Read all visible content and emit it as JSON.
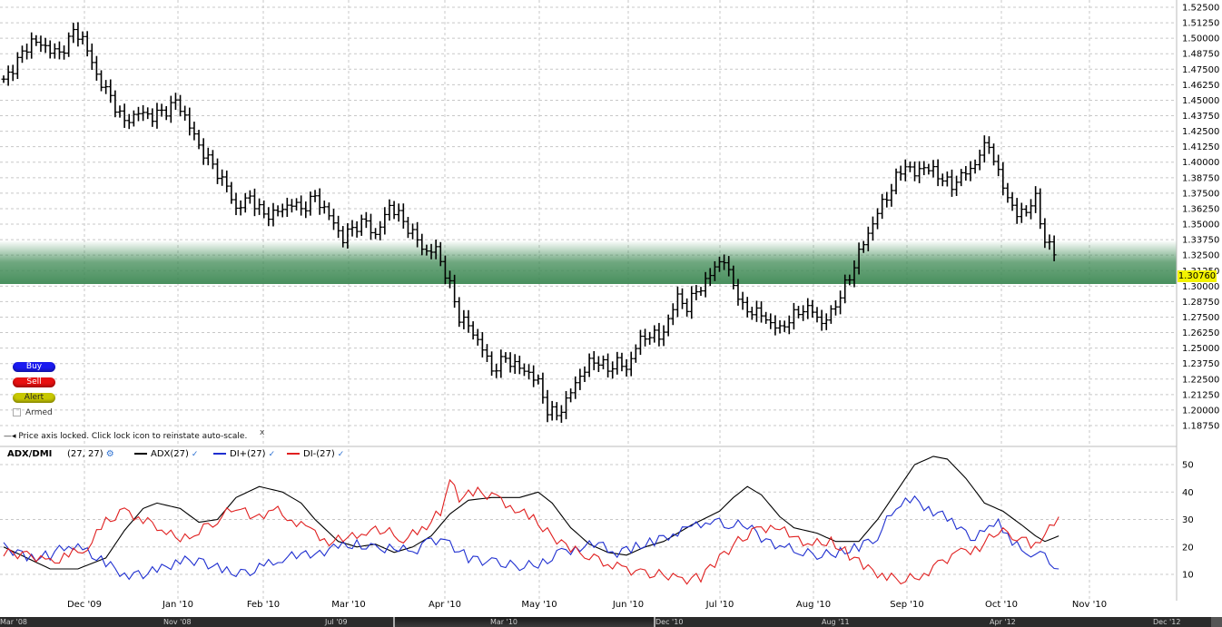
{
  "buttons": {
    "buy": "Buy",
    "sell": "Sell",
    "alert": "Alert",
    "armed": "Armed"
  },
  "lock_message": "Price axis locked. Click lock icon to reinstate auto-scale.",
  "lock_close": "x",
  "indicator": {
    "name": "ADX/DMI",
    "params": "(27, 27)",
    "lines": [
      {
        "label": "ADX(27)",
        "color": "#000000"
      },
      {
        "label": "DI+(27)",
        "color": "#1f2fd0"
      },
      {
        "label": "DI-(27)",
        "color": "#e02020"
      }
    ]
  },
  "price_tag": "1.30760",
  "navigator_labels": [
    "Mar '08",
    "Nov '08",
    "Jul '09",
    "Mar '10",
    "Dec '10",
    "Aug '11",
    "Apr '12",
    "Dec '12"
  ],
  "colors": {
    "band": "#3f8a55",
    "price_tag": "#f3f300",
    "adx": "#000000",
    "di_plus": "#1f2fd0",
    "di_minus": "#e02020"
  },
  "chart_data": [
    {
      "type": "ohlc",
      "y_ticks": [
        "1.52500",
        "1.51250",
        "1.50000",
        "1.48750",
        "1.47500",
        "1.46250",
        "1.45000",
        "1.43750",
        "1.42500",
        "1.41250",
        "1.40000",
        "1.38750",
        "1.37500",
        "1.36250",
        "1.35000",
        "1.33750",
        "1.32500",
        "1.31250",
        "1.30000",
        "1.28750",
        "1.27500",
        "1.26250",
        "1.25000",
        "1.23750",
        "1.22500",
        "1.21250",
        "1.20000",
        "1.18750"
      ],
      "ylim": [
        1.18,
        1.53
      ],
      "x_labels": [
        "Dec '09",
        "Jan '10",
        "Feb '10",
        "Mar '10",
        "Apr '10",
        "May '10",
        "Jun '10",
        "Jul '10",
        "Aug '10",
        "Sep '10",
        "Oct '10",
        "Nov '10"
      ],
      "highlight_band": [
        1.3005,
        1.3255
      ],
      "last_price": 1.3076,
      "anchors": [
        [
          0,
          1.465
        ],
        [
          3,
          1.482
        ],
        [
          6,
          1.498
        ],
        [
          9,
          1.493
        ],
        [
          12,
          1.487
        ],
        [
          15,
          1.505
        ],
        [
          17,
          1.5
        ],
        [
          20,
          1.47
        ],
        [
          23,
          1.452
        ],
        [
          26,
          1.432
        ],
        [
          29,
          1.44
        ],
        [
          32,
          1.437
        ],
        [
          35,
          1.442
        ],
        [
          37,
          1.449
        ],
        [
          39,
          1.437
        ],
        [
          42,
          1.413
        ],
        [
          45,
          1.397
        ],
        [
          48,
          1.38
        ],
        [
          50,
          1.362
        ],
        [
          53,
          1.372
        ],
        [
          56,
          1.357
        ],
        [
          59,
          1.36
        ],
        [
          62,
          1.367
        ],
        [
          64,
          1.362
        ],
        [
          67,
          1.372
        ],
        [
          70,
          1.357
        ],
        [
          73,
          1.338
        ],
        [
          75,
          1.347
        ],
        [
          78,
          1.352
        ],
        [
          80,
          1.34
        ],
        [
          83,
          1.365
        ],
        [
          85,
          1.357
        ],
        [
          88,
          1.342
        ],
        [
          91,
          1.327
        ],
        [
          93,
          1.33
        ],
        [
          96,
          1.3
        ],
        [
          98,
          1.275
        ],
        [
          100,
          1.268
        ],
        [
          103,
          1.25
        ],
        [
          105,
          1.232
        ],
        [
          108,
          1.242
        ],
        [
          110,
          1.236
        ],
        [
          113,
          1.23
        ],
        [
          115,
          1.222
        ],
        [
          117,
          1.2
        ],
        [
          119,
          1.196
        ],
        [
          121,
          1.207
        ],
        [
          123,
          1.222
        ],
        [
          126,
          1.238
        ],
        [
          128,
          1.24
        ],
        [
          130,
          1.232
        ],
        [
          132,
          1.24
        ],
        [
          134,
          1.232
        ],
        [
          136,
          1.252
        ],
        [
          139,
          1.262
        ],
        [
          141,
          1.258
        ],
        [
          143,
          1.272
        ],
        [
          145,
          1.292
        ],
        [
          147,
          1.282
        ],
        [
          149,
          1.297
        ],
        [
          151,
          1.302
        ],
        [
          153,
          1.317
        ],
        [
          155,
          1.32
        ],
        [
          157,
          1.302
        ],
        [
          159,
          1.282
        ],
        [
          161,
          1.28
        ],
        [
          163,
          1.277
        ],
        [
          165,
          1.27
        ],
        [
          167,
          1.265
        ],
        [
          169,
          1.273
        ],
        [
          172,
          1.282
        ],
        [
          174,
          1.28
        ],
        [
          176,
          1.27
        ],
        [
          178,
          1.278
        ],
        [
          180,
          1.293
        ],
        [
          182,
          1.307
        ],
        [
          184,
          1.327
        ],
        [
          186,
          1.342
        ],
        [
          188,
          1.36
        ],
        [
          190,
          1.372
        ],
        [
          192,
          1.387
        ],
        [
          194,
          1.398
        ],
        [
          196,
          1.39
        ],
        [
          198,
          1.397
        ],
        [
          200,
          1.392
        ],
        [
          202,
          1.387
        ],
        [
          204,
          1.38
        ],
        [
          206,
          1.39
        ],
        [
          208,
          1.393
        ],
        [
          210,
          1.407
        ],
        [
          212,
          1.415
        ],
        [
          214,
          1.39
        ],
        [
          216,
          1.372
        ],
        [
          218,
          1.357
        ],
        [
          220,
          1.362
        ],
        [
          222,
          1.37
        ],
        [
          224,
          1.337
        ],
        [
          226,
          1.327
        ]
      ]
    },
    {
      "type": "line",
      "y_ticks": [
        10,
        20,
        30,
        40,
        50
      ],
      "ylim": [
        4,
        57
      ],
      "series": [
        {
          "name": "ADX(27)",
          "color": "#000000",
          "points": [
            [
              0,
              20
            ],
            [
              5,
              16
            ],
            [
              10,
              12
            ],
            [
              16,
              12
            ],
            [
              22,
              16
            ],
            [
              26,
              26
            ],
            [
              30,
              34
            ],
            [
              33,
              36
            ],
            [
              38,
              34
            ],
            [
              42,
              29
            ],
            [
              46,
              30
            ],
            [
              50,
              38
            ],
            [
              55,
              42
            ],
            [
              60,
              40
            ],
            [
              64,
              36
            ],
            [
              67,
              30
            ],
            [
              72,
              22
            ],
            [
              76,
              20
            ],
            [
              80,
              21
            ],
            [
              84,
              18
            ],
            [
              88,
              20
            ],
            [
              92,
              24
            ],
            [
              96,
              32
            ],
            [
              100,
              37
            ],
            [
              105,
              38
            ],
            [
              111,
              38
            ],
            [
              115,
              40
            ],
            [
              118,
              36
            ],
            [
              122,
              27
            ],
            [
              126,
              21
            ],
            [
              130,
              18
            ],
            [
              134,
              17
            ],
            [
              138,
              20
            ],
            [
              142,
              22
            ],
            [
              148,
              28
            ],
            [
              154,
              33
            ],
            [
              157,
              38
            ],
            [
              160,
              42
            ],
            [
              163,
              39
            ],
            [
              167,
              31
            ],
            [
              170,
              27
            ],
            [
              175,
              25
            ],
            [
              179,
              22
            ],
            [
              184,
              22
            ],
            [
              188,
              30
            ],
            [
              192,
              40
            ],
            [
              196,
              50
            ],
            [
              200,
              53
            ],
            [
              203,
              52
            ],
            [
              207,
              45
            ],
            [
              211,
              36
            ],
            [
              215,
              33
            ],
            [
              219,
              28
            ],
            [
              222,
              24
            ],
            [
              224,
              22
            ],
            [
              227,
              24
            ]
          ]
        },
        {
          "name": "DI+(27)",
          "color": "#1f2fd0",
          "points": [
            [
              0,
              20
            ],
            [
              6,
              16
            ],
            [
              10,
              17
            ],
            [
              14,
              21
            ],
            [
              18,
              18
            ],
            [
              22,
              14
            ],
            [
              26,
              10
            ],
            [
              30,
              10
            ],
            [
              34,
              12
            ],
            [
              38,
              15
            ],
            [
              42,
              15
            ],
            [
              48,
              11
            ],
            [
              52,
              10
            ],
            [
              56,
              13
            ],
            [
              60,
              16
            ],
            [
              64,
              17
            ],
            [
              68,
              18
            ],
            [
              72,
              20
            ],
            [
              76,
              21
            ],
            [
              80,
              19
            ],
            [
              84,
              20
            ],
            [
              88,
              18
            ],
            [
              92,
              23
            ],
            [
              96,
              21
            ],
            [
              100,
              16
            ],
            [
              106,
              14
            ],
            [
              112,
              13
            ],
            [
              116,
              14
            ],
            [
              120,
              18
            ],
            [
              124,
              20
            ],
            [
              128,
              21
            ],
            [
              132,
              18
            ],
            [
              136,
              20
            ],
            [
              140,
              22
            ],
            [
              144,
              25
            ],
            [
              148,
              27
            ],
            [
              152,
              30
            ],
            [
              156,
              28
            ],
            [
              160,
              28
            ],
            [
              164,
              22
            ],
            [
              168,
              20
            ],
            [
              172,
              18
            ],
            [
              176,
              17
            ],
            [
              180,
              18
            ],
            [
              184,
              20
            ],
            [
              188,
              24
            ],
            [
              192,
              35
            ],
            [
              196,
              37
            ],
            [
              200,
              33
            ],
            [
              204,
              30
            ],
            [
              208,
              23
            ],
            [
              212,
              26
            ],
            [
              214,
              30
            ],
            [
              217,
              21
            ],
            [
              221,
              18
            ],
            [
              224,
              16
            ],
            [
              227,
              12
            ]
          ]
        },
        {
          "name": "DI-(27)",
          "color": "#e02020",
          "points": [
            [
              0,
              18
            ],
            [
              6,
              17
            ],
            [
              10,
              14
            ],
            [
              14,
              17
            ],
            [
              18,
              20
            ],
            [
              22,
              29
            ],
            [
              26,
              33
            ],
            [
              30,
              30
            ],
            [
              34,
              27
            ],
            [
              38,
              22
            ],
            [
              42,
              26
            ],
            [
              46,
              30
            ],
            [
              50,
              35
            ],
            [
              54,
              30
            ],
            [
              58,
              34
            ],
            [
              62,
              30
            ],
            [
              66,
              26
            ],
            [
              70,
              22
            ],
            [
              74,
              23
            ],
            [
              78,
              26
            ],
            [
              82,
              26
            ],
            [
              86,
              23
            ],
            [
              90,
              26
            ],
            [
              94,
              33
            ],
            [
              96,
              44
            ],
            [
              98,
              38
            ],
            [
              102,
              40
            ],
            [
              106,
              38
            ],
            [
              110,
              34
            ],
            [
              114,
              30
            ],
            [
              118,
              24
            ],
            [
              122,
              19
            ],
            [
              126,
              17
            ],
            [
              130,
              14
            ],
            [
              134,
              12
            ],
            [
              138,
              10
            ],
            [
              142,
              10
            ],
            [
              146,
              8
            ],
            [
              150,
              9
            ],
            [
              154,
              16
            ],
            [
              158,
              22
            ],
            [
              162,
              26
            ],
            [
              166,
              28
            ],
            [
              170,
              23
            ],
            [
              174,
              21
            ],
            [
              178,
              22
            ],
            [
              182,
              17
            ],
            [
              186,
              12
            ],
            [
              190,
              9
            ],
            [
              194,
              8
            ],
            [
              198,
              10
            ],
            [
              202,
              15
            ],
            [
              206,
              18
            ],
            [
              210,
              20
            ],
            [
              214,
              26
            ],
            [
              218,
              24
            ],
            [
              222,
              20
            ],
            [
              225,
              28
            ],
            [
              227,
              31
            ]
          ]
        }
      ]
    }
  ]
}
